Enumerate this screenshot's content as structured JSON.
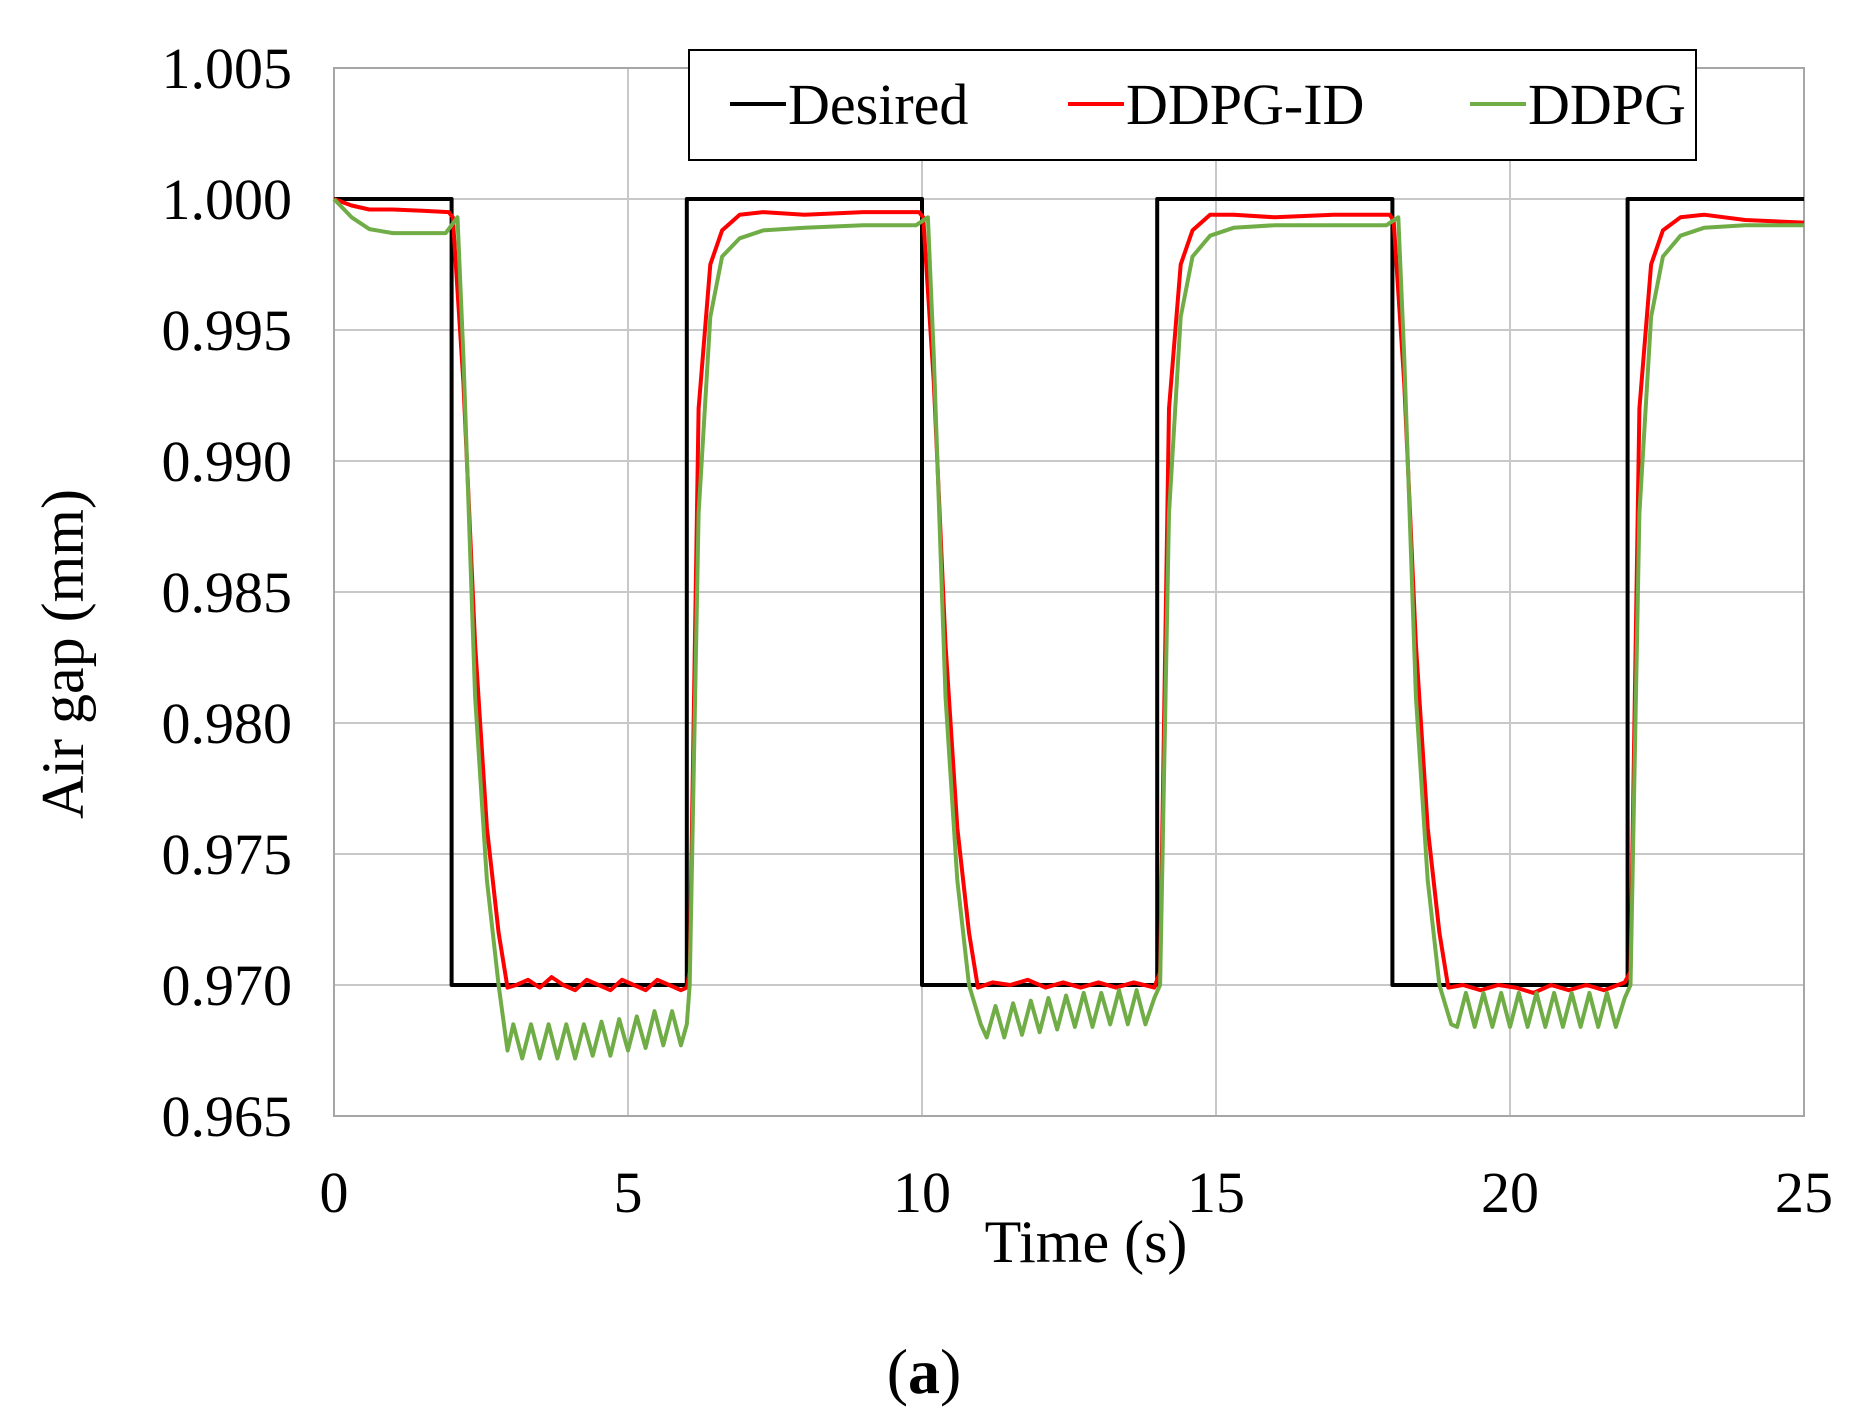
{
  "chart_data": {
    "type": "line",
    "title": "",
    "panel_label": {
      "open": "(",
      "letter": "a",
      "close": ")"
    },
    "xlabel": "Time (s)",
    "ylabel": "Air gap (mm)",
    "xlim": [
      0,
      25
    ],
    "ylim": [
      0.965,
      1.005
    ],
    "x_ticks": [
      0,
      5,
      10,
      15,
      20,
      25
    ],
    "x_tick_labels": [
      "0",
      "5",
      "10",
      "15",
      "20",
      "25"
    ],
    "y_ticks": [
      0.965,
      0.97,
      0.975,
      0.98,
      0.985,
      0.99,
      0.995,
      1.0,
      1.005
    ],
    "y_tick_labels": [
      "0.965",
      "0.970",
      "0.975",
      "0.980",
      "0.985",
      "0.990",
      "0.995",
      "1.000",
      "1.005"
    ],
    "grid": true,
    "legend": {
      "placement": "top-right",
      "entries": [
        "Desired",
        "DDPG-ID",
        "DDPG"
      ]
    },
    "series": [
      {
        "name": "Desired",
        "color": "#000000",
        "x": [
          0,
          2,
          2,
          6,
          6,
          10,
          10,
          14,
          14,
          18,
          18,
          22,
          22,
          25
        ],
        "y": [
          1.0,
          1.0,
          0.97,
          0.97,
          1.0,
          1.0,
          0.97,
          0.97,
          1.0,
          1.0,
          0.97,
          0.97,
          1.0,
          1.0
        ]
      },
      {
        "name": "DDPG-ID",
        "color": "#ff0000",
        "x": [
          0,
          0.3,
          0.6,
          1.0,
          1.5,
          1.95,
          2.02,
          2.2,
          2.4,
          2.6,
          2.8,
          2.95,
          3.1,
          3.3,
          3.5,
          3.7,
          3.9,
          4.1,
          4.3,
          4.5,
          4.7,
          4.9,
          5.1,
          5.3,
          5.5,
          5.7,
          5.9,
          6.0,
          6.05,
          6.2,
          6.4,
          6.6,
          6.9,
          7.3,
          8.0,
          9.0,
          9.95,
          10.02,
          10.2,
          10.4,
          10.6,
          10.8,
          10.95,
          11.2,
          11.5,
          11.8,
          12.1,
          12.4,
          12.7,
          13.0,
          13.3,
          13.6,
          13.95,
          14.05,
          14.2,
          14.4,
          14.6,
          14.9,
          15.3,
          16.0,
          17.0,
          17.95,
          18.02,
          18.2,
          18.4,
          18.6,
          18.8,
          18.95,
          19.2,
          19.5,
          19.8,
          20.1,
          20.4,
          20.7,
          21.0,
          21.3,
          21.6,
          21.95,
          22.05,
          22.2,
          22.4,
          22.6,
          22.9,
          23.3,
          24.0,
          25.0
        ],
        "y": [
          1.0,
          0.99975,
          0.9996,
          0.9996,
          0.99955,
          0.9995,
          0.9993,
          0.993,
          0.983,
          0.976,
          0.972,
          0.9699,
          0.97,
          0.9702,
          0.9699,
          0.9703,
          0.97,
          0.9698,
          0.9702,
          0.97,
          0.9698,
          0.9702,
          0.97,
          0.9698,
          0.9702,
          0.97,
          0.9698,
          0.9699,
          0.9705,
          0.992,
          0.9975,
          0.9988,
          0.9994,
          0.9995,
          0.9994,
          0.9995,
          0.9995,
          0.9993,
          0.993,
          0.983,
          0.976,
          0.972,
          0.9699,
          0.9701,
          0.97,
          0.9702,
          0.9699,
          0.9701,
          0.9699,
          0.9701,
          0.9699,
          0.9701,
          0.9699,
          0.9705,
          0.992,
          0.9975,
          0.9988,
          0.9994,
          0.9994,
          0.9993,
          0.9994,
          0.9994,
          0.9992,
          0.993,
          0.983,
          0.976,
          0.972,
          0.9699,
          0.97,
          0.9698,
          0.97,
          0.9699,
          0.9697,
          0.97,
          0.9698,
          0.97,
          0.9698,
          0.9701,
          0.9705,
          0.992,
          0.9975,
          0.9988,
          0.9993,
          0.9994,
          0.9992,
          0.9991
        ]
      },
      {
        "name": "DDPG",
        "color": "#70ad47",
        "x": [
          0,
          0.3,
          0.6,
          1.0,
          1.5,
          1.9,
          2.1,
          2.2,
          2.4,
          2.6,
          2.8,
          2.95,
          3.05,
          3.2,
          3.35,
          3.5,
          3.65,
          3.8,
          3.95,
          4.1,
          4.25,
          4.4,
          4.55,
          4.7,
          4.85,
          5.0,
          5.15,
          5.3,
          5.45,
          5.6,
          5.75,
          5.9,
          6.0,
          6.05,
          6.2,
          6.4,
          6.6,
          6.9,
          7.3,
          8.0,
          9.0,
          9.9,
          10.1,
          10.2,
          10.4,
          10.6,
          10.8,
          11.0,
          11.1,
          11.25,
          11.4,
          11.55,
          11.7,
          11.85,
          12.0,
          12.15,
          12.3,
          12.45,
          12.6,
          12.75,
          12.9,
          13.05,
          13.2,
          13.35,
          13.5,
          13.65,
          13.8,
          13.95,
          14.05,
          14.2,
          14.4,
          14.6,
          14.9,
          15.3,
          16.0,
          17.0,
          17.9,
          18.1,
          18.2,
          18.4,
          18.6,
          18.8,
          19.0,
          19.1,
          19.25,
          19.4,
          19.55,
          19.7,
          19.85,
          20.0,
          20.15,
          20.3,
          20.45,
          20.6,
          20.75,
          20.9,
          21.05,
          21.2,
          21.35,
          21.5,
          21.65,
          21.8,
          21.95,
          22.05,
          22.2,
          22.4,
          22.6,
          22.9,
          23.3,
          24.0,
          25.0
        ],
        "y": [
          1.0,
          0.9993,
          0.99885,
          0.9987,
          0.9987,
          0.9987,
          0.9993,
          0.994,
          0.981,
          0.974,
          0.97,
          0.9675,
          0.9685,
          0.9672,
          0.9685,
          0.9672,
          0.9685,
          0.9672,
          0.9685,
          0.9672,
          0.9685,
          0.9673,
          0.9686,
          0.9673,
          0.9687,
          0.9675,
          0.9688,
          0.9676,
          0.969,
          0.9677,
          0.969,
          0.9677,
          0.9685,
          0.97,
          0.988,
          0.9955,
          0.9978,
          0.9985,
          0.9988,
          0.9989,
          0.999,
          0.999,
          0.9993,
          0.994,
          0.981,
          0.974,
          0.97,
          0.9685,
          0.968,
          0.9692,
          0.968,
          0.9693,
          0.9681,
          0.9694,
          0.9682,
          0.9695,
          0.9683,
          0.9696,
          0.9684,
          0.9697,
          0.9684,
          0.9697,
          0.9685,
          0.9698,
          0.9685,
          0.9698,
          0.9685,
          0.9695,
          0.97,
          0.988,
          0.9955,
          0.9978,
          0.9986,
          0.9989,
          0.999,
          0.999,
          0.999,
          0.9993,
          0.994,
          0.981,
          0.974,
          0.97,
          0.9685,
          0.9684,
          0.9697,
          0.9684,
          0.9697,
          0.9684,
          0.9697,
          0.9684,
          0.9697,
          0.9684,
          0.9697,
          0.9684,
          0.9697,
          0.9684,
          0.9697,
          0.9684,
          0.9697,
          0.9684,
          0.9697,
          0.9684,
          0.9695,
          0.97,
          0.988,
          0.9955,
          0.9978,
          0.9986,
          0.9989,
          0.999,
          0.999
        ]
      }
    ]
  }
}
